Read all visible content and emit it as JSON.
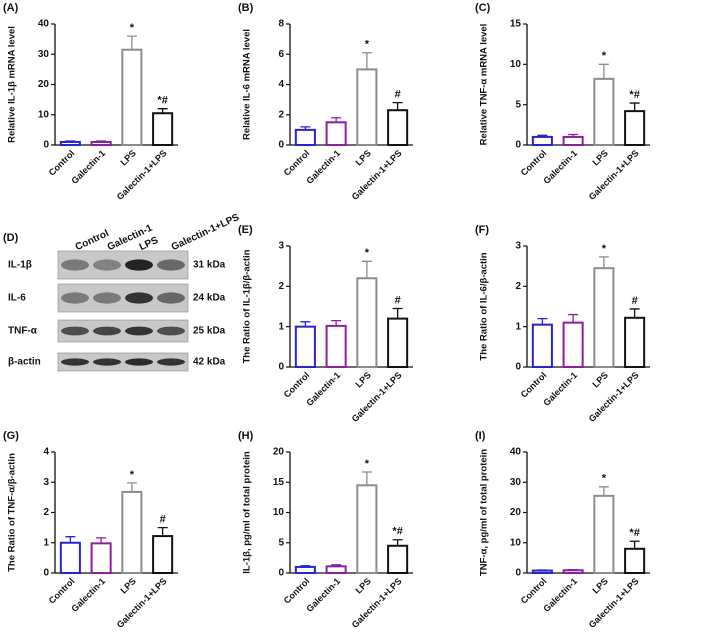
{
  "chart_data": [
    {
      "type": "bar",
      "label": "(A)",
      "ylabel": "Relative IL-1β mRNA level",
      "categories": [
        "Control",
        "Galectin-1",
        "LPS",
        "Galectin-1+LPS"
      ],
      "values": [
        1,
        1,
        31.5,
        10.5
      ],
      "errors": [
        0.3,
        0.3,
        4.5,
        1.5
      ],
      "annotations": [
        null,
        null,
        "*",
        "*#"
      ],
      "colors": [
        "#2424d0",
        "#8a1fa0",
        "#8c8c8c",
        "#111111"
      ],
      "ylim": [
        0,
        40
      ],
      "yticks": [
        0,
        10,
        20,
        30,
        40
      ]
    },
    {
      "type": "bar",
      "label": "(B)",
      "ylabel": "Relative IL-6 mRNA level",
      "categories": [
        "Control",
        "Galectin-1",
        "LPS",
        "Galectin-1+LPS"
      ],
      "values": [
        1,
        1.5,
        5,
        2.3
      ],
      "errors": [
        0.2,
        0.3,
        1.1,
        0.5
      ],
      "annotations": [
        null,
        null,
        "*",
        "#"
      ],
      "colors": [
        "#2424d0",
        "#8a1fa0",
        "#8c8c8c",
        "#111111"
      ],
      "ylim": [
        0,
        8
      ],
      "yticks": [
        0,
        2,
        4,
        6,
        8
      ]
    },
    {
      "type": "bar",
      "label": "(C)",
      "ylabel": "Relative TNF-α mRNA level",
      "categories": [
        "Control",
        "Galectin-1",
        "LPS",
        "Galectin-1+LPS"
      ],
      "values": [
        1,
        1,
        8.2,
        4.2
      ],
      "errors": [
        0.2,
        0.3,
        1.8,
        1
      ],
      "annotations": [
        null,
        null,
        "*",
        "*#"
      ],
      "colors": [
        "#2424d0",
        "#8a1fa0",
        "#8c8c8c",
        "#111111"
      ],
      "ylim": [
        0,
        15
      ],
      "yticks": [
        0,
        5,
        10,
        15
      ]
    },
    {
      "type": "bar",
      "label": "(E)",
      "ylabel": "The Ratio of IL-1β/β-actin",
      "categories": [
        "Control",
        "Galectin-1",
        "LPS",
        "Galectin-1+LPS"
      ],
      "values": [
        1,
        1.02,
        2.2,
        1.2
      ],
      "errors": [
        0.12,
        0.13,
        0.42,
        0.25
      ],
      "annotations": [
        null,
        null,
        "*",
        "#"
      ],
      "colors": [
        "#2424d0",
        "#8a1fa0",
        "#8c8c8c",
        "#111111"
      ],
      "ylim": [
        0,
        3
      ],
      "yticks": [
        0,
        1,
        2,
        3
      ]
    },
    {
      "type": "bar",
      "label": "(F)",
      "ylabel": "The Ratio of IL-6/β-actin",
      "categories": [
        "Control",
        "Galectin-1",
        "LPS",
        "Galectin-1+LPS"
      ],
      "values": [
        1.05,
        1.1,
        2.45,
        1.22
      ],
      "errors": [
        0.15,
        0.2,
        0.28,
        0.22
      ],
      "annotations": [
        null,
        null,
        "*",
        "#"
      ],
      "colors": [
        "#2424d0",
        "#8a1fa0",
        "#8c8c8c",
        "#111111"
      ],
      "ylim": [
        0,
        3
      ],
      "yticks": [
        0,
        1,
        2,
        3
      ]
    },
    {
      "type": "bar",
      "label": "(G)",
      "ylabel": "The Ratio of TNF-α/β-actin",
      "categories": [
        "Control",
        "Galectin-1",
        "LPS",
        "Galectin-1+LPS"
      ],
      "values": [
        1,
        0.98,
        2.68,
        1.22
      ],
      "errors": [
        0.2,
        0.18,
        0.3,
        0.28
      ],
      "annotations": [
        null,
        null,
        "*",
        "#"
      ],
      "colors": [
        "#2424d0",
        "#8a1fa0",
        "#8c8c8c",
        "#111111"
      ],
      "ylim": [
        0,
        4
      ],
      "yticks": [
        0,
        1,
        2,
        3,
        4
      ]
    },
    {
      "type": "bar",
      "label": "(H)",
      "ylabel": "IL-1β, pg/ml of total protein",
      "categories": [
        "Control",
        "Galectin-1",
        "LPS",
        "Galectin-1+LPS"
      ],
      "values": [
        1,
        1.1,
        14.5,
        4.5
      ],
      "errors": [
        0.2,
        0.25,
        2.2,
        1
      ],
      "annotations": [
        null,
        null,
        "*",
        "*#"
      ],
      "colors": [
        "#2424d0",
        "#8a1fa0",
        "#8c8c8c",
        "#111111"
      ],
      "ylim": [
        0,
        20
      ],
      "yticks": [
        0,
        5,
        10,
        15,
        20
      ]
    },
    {
      "type": "bar",
      "label": "(I)",
      "ylabel": "TNF-α, pg/ml of total protein",
      "categories": [
        "Control",
        "Galectin-1",
        "LPS",
        "Galectin-1+LPS"
      ],
      "values": [
        0.8,
        0.9,
        25.5,
        8
      ],
      "errors": [
        0.2,
        0.2,
        3,
        2.5
      ],
      "annotations": [
        null,
        null,
        "*",
        "*#"
      ],
      "colors": [
        "#2424d0",
        "#8a1fa0",
        "#8c8c8c",
        "#111111"
      ],
      "ylim": [
        0,
        40
      ],
      "yticks": [
        0,
        10,
        20,
        30,
        40
      ]
    }
  ],
  "blot": {
    "label": "(D)",
    "lanes": [
      "Control",
      "Galectin-1",
      "LPS",
      "Galectin-1+LPS"
    ],
    "proteins": [
      "IL-1β",
      "IL-6",
      "TNF-α",
      "β-actin"
    ],
    "sizes": [
      "31 kDa",
      "24 kDa",
      "25 kDa",
      "42 kDa"
    ]
  }
}
